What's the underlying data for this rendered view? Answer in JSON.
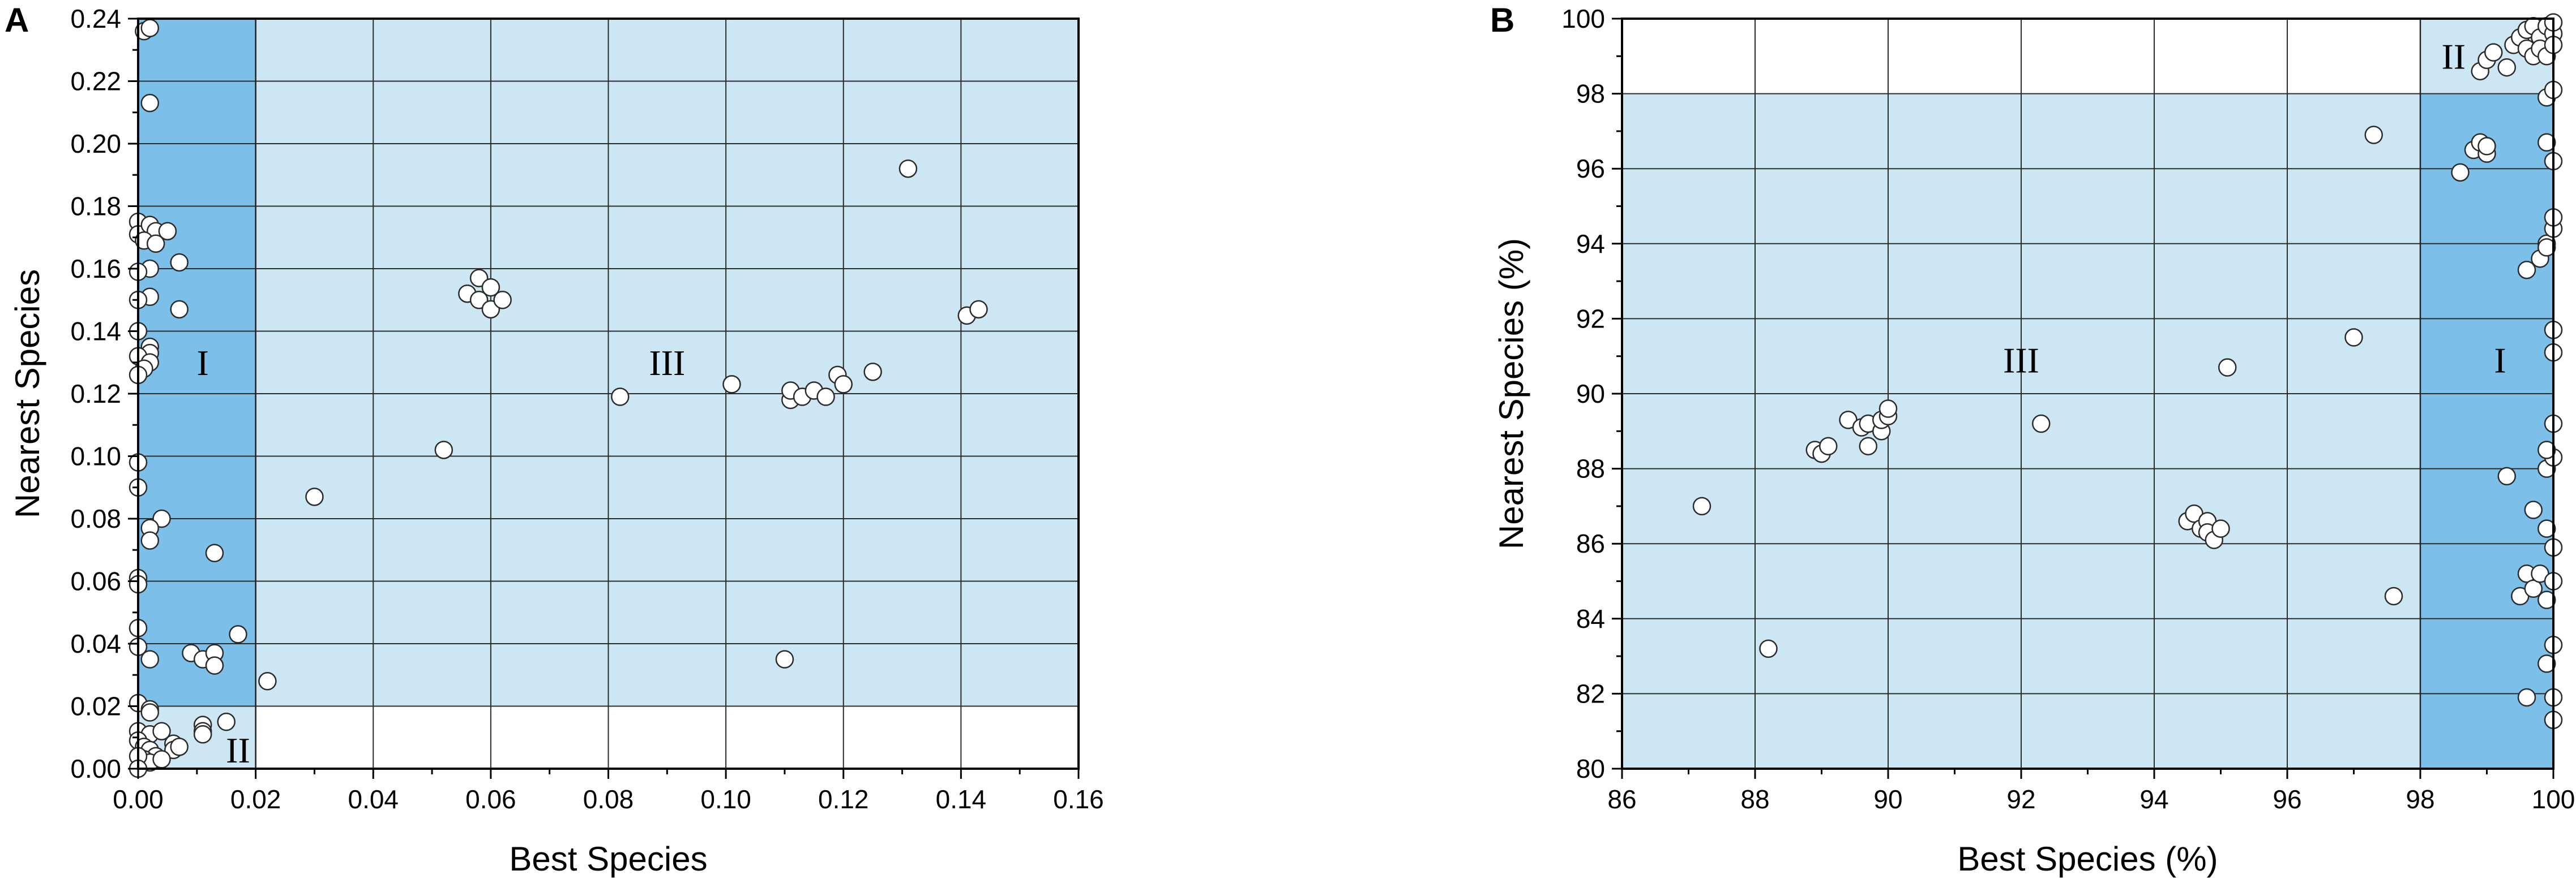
{
  "chart_data": [
    {
      "type": "scatter",
      "panel_label": "A",
      "xlabel": "Best Species",
      "ylabel": "Nearest Species",
      "xlim": [
        0,
        0.16
      ],
      "ylim": [
        0,
        0.24
      ],
      "x_ticks": [
        0,
        0.02,
        0.04,
        0.06,
        0.08,
        0.1,
        0.12,
        0.14,
        0.16
      ],
      "x_tick_labels": [
        "0.00",
        "0.02",
        "0.04",
        "0.06",
        "0.08",
        "0.10",
        "0.12",
        "0.14",
        "0.16"
      ],
      "y_ticks": [
        0,
        0.02,
        0.04,
        0.06,
        0.08,
        0.1,
        0.12,
        0.14,
        0.16,
        0.18,
        0.2,
        0.22,
        0.24
      ],
      "y_tick_labels": [
        "0.00",
        "0.02",
        "0.04",
        "0.06",
        "0.08",
        "0.10",
        "0.12",
        "0.14",
        "0.16",
        "0.18",
        "0.20",
        "0.22",
        "0.24"
      ],
      "grid": true,
      "regions": [
        {
          "label": "III",
          "x": [
            0.02,
            0.16
          ],
          "y": [
            0.02,
            0.24
          ],
          "color": "#cde6f4",
          "label_at": [
            0.09,
            0.13
          ]
        },
        {
          "label": "I",
          "x": [
            0,
            0.02
          ],
          "y": [
            0,
            0.24
          ],
          "color": "#7cc0ea",
          "label_at": [
            0.011,
            0.13
          ]
        },
        {
          "label": "II",
          "x": [
            0,
            0.02
          ],
          "y": [
            0,
            0.02
          ],
          "color": "#cde6f4",
          "label_at": [
            0.017,
            0.006
          ]
        }
      ],
      "points": [
        [
          0.001,
          0.236
        ],
        [
          0.002,
          0.237
        ],
        [
          0.002,
          0.213
        ],
        [
          0.0,
          0.175
        ],
        [
          0.0,
          0.171
        ],
        [
          0.002,
          0.174
        ],
        [
          0.003,
          0.172
        ],
        [
          0.001,
          0.169
        ],
        [
          0.003,
          0.168
        ],
        [
          0.005,
          0.172
        ],
        [
          0.007,
          0.162
        ],
        [
          0.002,
          0.16
        ],
        [
          0.0,
          0.159
        ],
        [
          0.002,
          0.151
        ],
        [
          0.0,
          0.15
        ],
        [
          0.007,
          0.147
        ],
        [
          0.0,
          0.14
        ],
        [
          0.002,
          0.135
        ],
        [
          0.002,
          0.133
        ],
        [
          0.0,
          0.132
        ],
        [
          0.002,
          0.13
        ],
        [
          0.001,
          0.128
        ],
        [
          0.0,
          0.126
        ],
        [
          0.0,
          0.098
        ],
        [
          0.0,
          0.09
        ],
        [
          0.004,
          0.08
        ],
        [
          0.002,
          0.077
        ],
        [
          0.002,
          0.073
        ],
        [
          0.013,
          0.069
        ],
        [
          0.0,
          0.061
        ],
        [
          0.0,
          0.059
        ],
        [
          0.0,
          0.045
        ],
        [
          0.017,
          0.043
        ],
        [
          0.0,
          0.039
        ],
        [
          0.009,
          0.037
        ],
        [
          0.011,
          0.035
        ],
        [
          0.013,
          0.037
        ],
        [
          0.013,
          0.033
        ],
        [
          0.002,
          0.035
        ],
        [
          0.0,
          0.021
        ],
        [
          0.002,
          0.019
        ],
        [
          0.002,
          0.018
        ],
        [
          0.015,
          0.015
        ],
        [
          0.011,
          0.014
        ],
        [
          0.011,
          0.012
        ],
        [
          0.011,
          0.011
        ],
        [
          0.0,
          0.012
        ],
        [
          0.002,
          0.011
        ],
        [
          0.004,
          0.012
        ],
        [
          0.006,
          0.008
        ],
        [
          0.006,
          0.006
        ],
        [
          0.007,
          0.007
        ],
        [
          0.0,
          0.009
        ],
        [
          0.001,
          0.007
        ],
        [
          0.002,
          0.006
        ],
        [
          0.003,
          0.004
        ],
        [
          0.001,
          0.003
        ],
        [
          0.002,
          0.002
        ],
        [
          0.0,
          0.004
        ],
        [
          0.004,
          0.003
        ],
        [
          0.0,
          0.0
        ],
        [
          0.022,
          0.028
        ],
        [
          0.03,
          0.087
        ],
        [
          0.052,
          0.102
        ],
        [
          0.056,
          0.152
        ],
        [
          0.058,
          0.157
        ],
        [
          0.058,
          0.15
        ],
        [
          0.06,
          0.154
        ],
        [
          0.06,
          0.147
        ],
        [
          0.062,
          0.15
        ],
        [
          0.082,
          0.119
        ],
        [
          0.101,
          0.123
        ],
        [
          0.11,
          0.035
        ],
        [
          0.111,
          0.118
        ],
        [
          0.111,
          0.121
        ],
        [
          0.113,
          0.119
        ],
        [
          0.115,
          0.121
        ],
        [
          0.117,
          0.119
        ],
        [
          0.119,
          0.126
        ],
        [
          0.12,
          0.123
        ],
        [
          0.125,
          0.127
        ],
        [
          0.131,
          0.192
        ],
        [
          0.141,
          0.145
        ],
        [
          0.143,
          0.147
        ]
      ]
    },
    {
      "type": "scatter",
      "panel_label": "B",
      "xlabel": "Best Species (%)",
      "ylabel": "Nearest Species (%)",
      "xlim": [
        86,
        100
      ],
      "ylim": [
        80,
        100
      ],
      "x_ticks": [
        86,
        88,
        90,
        92,
        94,
        96,
        98,
        100
      ],
      "x_tick_labels": [
        "86",
        "88",
        "90",
        "92",
        "94",
        "96",
        "98",
        "100"
      ],
      "y_ticks": [
        80,
        82,
        84,
        86,
        88,
        90,
        92,
        94,
        96,
        98,
        100
      ],
      "y_tick_labels": [
        "80",
        "82",
        "84",
        "86",
        "88",
        "90",
        "92",
        "94",
        "96",
        "98",
        "100"
      ],
      "grid": true,
      "regions": [
        {
          "label": "III",
          "x": [
            86,
            98
          ],
          "y": [
            80,
            98
          ],
          "color": "#cde6f4",
          "label_at": [
            92.0,
            90.9
          ]
        },
        {
          "label": "I",
          "x": [
            98,
            100
          ],
          "y": [
            80,
            98
          ],
          "color": "#7cc0ea",
          "label_at": [
            99.2,
            90.9
          ]
        },
        {
          "label": "II",
          "x": [
            98,
            100
          ],
          "y": [
            98,
            100
          ],
          "color": "#cde6f4",
          "label_at": [
            98.5,
            99.0
          ]
        }
      ],
      "points": [
        [
          87.2,
          87.0
        ],
        [
          88.2,
          83.2
        ],
        [
          88.9,
          88.5
        ],
        [
          89.0,
          88.4
        ],
        [
          89.1,
          88.6
        ],
        [
          89.4,
          89.3
        ],
        [
          89.6,
          89.1
        ],
        [
          89.7,
          89.2
        ],
        [
          89.7,
          88.6
        ],
        [
          89.9,
          89.0
        ],
        [
          89.9,
          89.3
        ],
        [
          90.0,
          89.4
        ],
        [
          90.0,
          89.6
        ],
        [
          92.3,
          89.2
        ],
        [
          95.1,
          90.7
        ],
        [
          94.5,
          86.6
        ],
        [
          94.6,
          86.8
        ],
        [
          94.7,
          86.4
        ],
        [
          94.8,
          86.6
        ],
        [
          94.8,
          86.3
        ],
        [
          94.9,
          86.1
        ],
        [
          95.0,
          86.4
        ],
        [
          97.0,
          91.5
        ],
        [
          97.3,
          96.9
        ],
        [
          97.6,
          84.6
        ],
        [
          98.6,
          95.9
        ],
        [
          98.8,
          96.5
        ],
        [
          98.9,
          96.7
        ],
        [
          99.0,
          96.4
        ],
        [
          99.0,
          96.6
        ],
        [
          99.3,
          87.8
        ],
        [
          99.5,
          84.6
        ],
        [
          99.6,
          81.9
        ],
        [
          99.6,
          85.2
        ],
        [
          99.7,
          86.9
        ],
        [
          99.7,
          84.8
        ],
        [
          99.8,
          85.2
        ],
        [
          99.9,
          84.5
        ],
        [
          99.9,
          86.4
        ],
        [
          100.0,
          85.9
        ],
        [
          100.0,
          85.0
        ],
        [
          99.9,
          88.0
        ],
        [
          100.0,
          88.3
        ],
        [
          100.0,
          89.2
        ],
        [
          99.9,
          88.5
        ],
        [
          100.0,
          91.1
        ],
        [
          100.0,
          91.7
        ],
        [
          99.9,
          82.8
        ],
        [
          100.0,
          83.3
        ],
        [
          100.0,
          81.3
        ],
        [
          100.0,
          81.9
        ],
        [
          99.6,
          93.3
        ],
        [
          99.8,
          93.6
        ],
        [
          99.9,
          94.0
        ],
        [
          100.0,
          94.4
        ],
        [
          99.9,
          93.9
        ],
        [
          100.0,
          94.7
        ],
        [
          99.9,
          96.7
        ],
        [
          100.0,
          96.2
        ],
        [
          99.9,
          97.9
        ],
        [
          100.0,
          98.1
        ],
        [
          98.9,
          98.6
        ],
        [
          99.0,
          98.9
        ],
        [
          99.1,
          99.1
        ],
        [
          99.3,
          98.7
        ],
        [
          99.4,
          99.3
        ],
        [
          99.5,
          99.5
        ],
        [
          99.6,
          99.2
        ],
        [
          99.6,
          99.7
        ],
        [
          99.7,
          99.0
        ],
        [
          99.7,
          99.8
        ],
        [
          99.8,
          99.5
        ],
        [
          99.8,
          99.2
        ],
        [
          99.9,
          99.8
        ],
        [
          99.9,
          99.0
        ],
        [
          100.0,
          99.6
        ],
        [
          100.0,
          99.3
        ],
        [
          100.0,
          99.9
        ]
      ]
    }
  ]
}
